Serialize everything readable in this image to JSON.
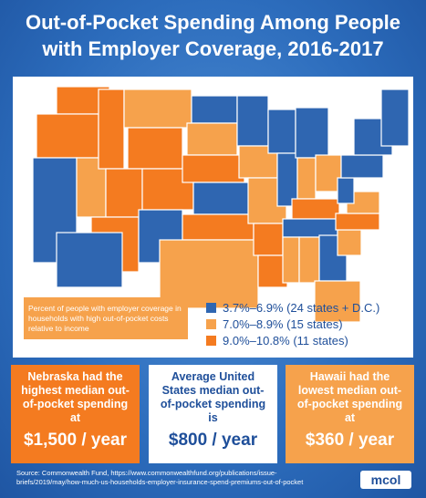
{
  "header": {
    "title": "Out-of-Pocket Spending Among People with Employer Coverage, 2016-2017"
  },
  "legend": {
    "note": "Percent of people with employer coverage in households with high out-of-pocket costs relative to income",
    "items": [
      {
        "label": "3.7%–6.9% (24 states + D.C.)",
        "color": "#2f66b1"
      },
      {
        "label": "7.0%–8.9% (15 states)",
        "color": "#f6a24c"
      },
      {
        "label": "9.0%–10.8% (11 states)",
        "color": "#f47b20"
      }
    ]
  },
  "boxes": [
    {
      "text": "Nebraska had the highest median out-of-pocket spending at",
      "amount": "$1,500 / year"
    },
    {
      "text": "Average United States median out-of-pocket spending is",
      "amount": "$800 / year"
    },
    {
      "text": "Hawaii had the lowest median out-of-pocket spending at",
      "amount": "$360 / year"
    }
  ],
  "footer": {
    "source": "Source: Commonwealth Fund, https://www.commonwealthfund.org/publications/issue-briefs/2019/may/how-much-us-households-employer-insurance-spend-premiums-out-of-pocket",
    "logo": "mcol"
  }
}
